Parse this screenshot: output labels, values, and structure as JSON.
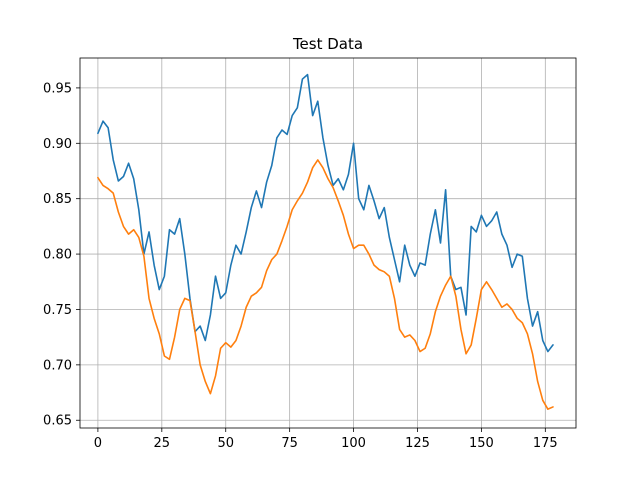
{
  "chart_data": {
    "type": "line",
    "title": "Test Data",
    "xlabel": "",
    "ylabel": "",
    "xlim": [
      -7,
      187
    ],
    "ylim": [
      0.643,
      0.977
    ],
    "xticks": [
      0,
      25,
      50,
      75,
      100,
      125,
      150,
      175
    ],
    "yticks": [
      0.65,
      0.7,
      0.75,
      0.8,
      0.85,
      0.9,
      0.95
    ],
    "ytick_labels": [
      "0.65",
      "0.70",
      "0.75",
      "0.80",
      "0.85",
      "0.90",
      "0.95"
    ],
    "grid": true,
    "series": [
      {
        "color": "#1f77b4",
        "x": [
          0,
          2,
          4,
          6,
          8,
          10,
          12,
          14,
          16,
          18,
          20,
          22,
          24,
          26,
          28,
          30,
          32,
          34,
          36,
          38,
          40,
          42,
          44,
          46,
          48,
          50,
          52,
          54,
          56,
          58,
          60,
          62,
          64,
          66,
          68,
          70,
          72,
          74,
          76,
          78,
          80,
          82,
          84,
          86,
          88,
          90,
          92,
          94,
          96,
          98,
          100,
          102,
          104,
          106,
          108,
          110,
          112,
          114,
          116,
          118,
          120,
          122,
          124,
          126,
          128,
          130,
          132,
          134,
          136,
          138,
          140,
          142,
          144,
          146,
          148,
          150,
          152,
          154,
          156,
          158,
          160,
          162,
          164,
          166,
          168,
          170,
          172,
          174,
          176,
          178
        ],
        "y": [
          0.909,
          0.92,
          0.914,
          0.885,
          0.866,
          0.87,
          0.882,
          0.868,
          0.84,
          0.8,
          0.82,
          0.79,
          0.768,
          0.78,
          0.822,
          0.818,
          0.832,
          0.8,
          0.76,
          0.73,
          0.735,
          0.722,
          0.745,
          0.78,
          0.76,
          0.765,
          0.79,
          0.808,
          0.8,
          0.82,
          0.842,
          0.857,
          0.842,
          0.865,
          0.88,
          0.905,
          0.912,
          0.908,
          0.925,
          0.932,
          0.958,
          0.962,
          0.925,
          0.938,
          0.905,
          0.88,
          0.862,
          0.868,
          0.858,
          0.872,
          0.9,
          0.85,
          0.84,
          0.862,
          0.848,
          0.832,
          0.842,
          0.815,
          0.795,
          0.775,
          0.808,
          0.79,
          0.78,
          0.792,
          0.79,
          0.818,
          0.84,
          0.81,
          0.858,
          0.78,
          0.768,
          0.77,
          0.745,
          0.825,
          0.82,
          0.835,
          0.825,
          0.83,
          0.838,
          0.818,
          0.808,
          0.788,
          0.8,
          0.798,
          0.76,
          0.735,
          0.748,
          0.722,
          0.712,
          0.718
        ]
      },
      {
        "color": "#ff7f0e",
        "x": [
          0,
          2,
          4,
          6,
          8,
          10,
          12,
          14,
          16,
          18,
          20,
          22,
          24,
          26,
          28,
          30,
          32,
          34,
          36,
          38,
          40,
          42,
          44,
          46,
          48,
          50,
          52,
          54,
          56,
          58,
          60,
          62,
          64,
          66,
          68,
          70,
          72,
          74,
          76,
          78,
          80,
          82,
          84,
          86,
          88,
          90,
          92,
          94,
          96,
          98,
          100,
          102,
          104,
          106,
          108,
          110,
          112,
          114,
          116,
          118,
          120,
          122,
          124,
          126,
          128,
          130,
          132,
          134,
          136,
          138,
          140,
          142,
          144,
          146,
          148,
          150,
          152,
          154,
          156,
          158,
          160,
          162,
          164,
          166,
          168,
          170,
          172,
          174,
          176,
          178
        ],
        "y": [
          0.869,
          0.862,
          0.859,
          0.855,
          0.838,
          0.825,
          0.818,
          0.822,
          0.815,
          0.798,
          0.76,
          0.742,
          0.728,
          0.708,
          0.705,
          0.725,
          0.75,
          0.76,
          0.758,
          0.73,
          0.7,
          0.685,
          0.674,
          0.69,
          0.715,
          0.72,
          0.716,
          0.722,
          0.735,
          0.752,
          0.762,
          0.765,
          0.77,
          0.785,
          0.795,
          0.8,
          0.812,
          0.825,
          0.84,
          0.848,
          0.855,
          0.865,
          0.878,
          0.885,
          0.878,
          0.868,
          0.86,
          0.848,
          0.835,
          0.818,
          0.805,
          0.808,
          0.808,
          0.8,
          0.79,
          0.786,
          0.784,
          0.78,
          0.76,
          0.732,
          0.725,
          0.727,
          0.722,
          0.712,
          0.715,
          0.728,
          0.748,
          0.762,
          0.772,
          0.78,
          0.762,
          0.732,
          0.71,
          0.718,
          0.742,
          0.768,
          0.775,
          0.768,
          0.76,
          0.752,
          0.755,
          0.75,
          0.742,
          0.738,
          0.728,
          0.71,
          0.685,
          0.668,
          0.66,
          0.662
        ]
      }
    ]
  }
}
